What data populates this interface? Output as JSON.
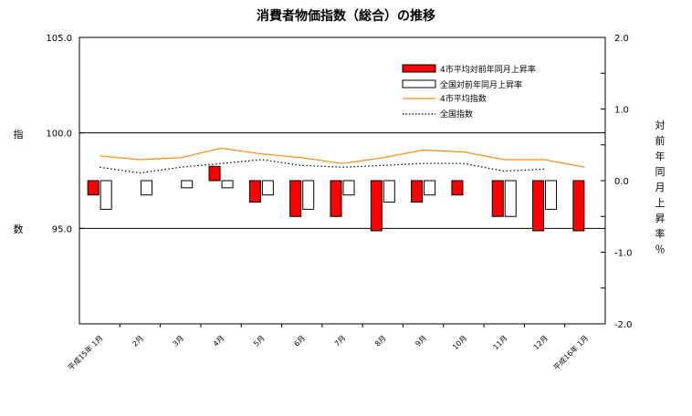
{
  "chart_data": {
    "type": "bar",
    "title": "消費者物価指数（総合）の推移",
    "categories": [
      "平成15年 1月",
      "2月",
      "3月",
      "4月",
      "5月",
      "6月",
      "7月",
      "8月",
      "9月",
      "10月",
      "11月",
      "12月",
      "平成16年 1月"
    ],
    "y_left": {
      "label": "指数",
      "ticks": [
        "105.0",
        "100.0",
        "95.0"
      ],
      "range": [
        90,
        105
      ]
    },
    "y_right": {
      "label": "対前年同月上昇率％",
      "ticks": [
        "2.0",
        "1.0",
        "0.0",
        "-1.0",
        "-2.0"
      ],
      "range": [
        -2,
        2
      ]
    },
    "series": [
      {
        "name": "4市平均対前年同月上昇率",
        "kind": "bar",
        "axis": "right",
        "color": "#ff0000",
        "values": [
          -0.2,
          0.0,
          0.0,
          0.2,
          -0.3,
          -0.5,
          -0.5,
          -0.7,
          -0.3,
          -0.2,
          -0.5,
          -0.7,
          -0.7
        ]
      },
      {
        "name": "全国対前年同月上昇率",
        "kind": "bar",
        "axis": "right",
        "color": "#ffffff",
        "values": [
          -0.4,
          -0.2,
          -0.1,
          -0.1,
          -0.2,
          -0.4,
          -0.2,
          -0.3,
          -0.2,
          0.0,
          -0.5,
          -0.4,
          null
        ]
      },
      {
        "name": "4市平均指数",
        "kind": "line",
        "axis": "left",
        "color": "#ff8c1a",
        "values": [
          98.8,
          98.6,
          98.7,
          99.2,
          98.9,
          98.7,
          98.4,
          98.7,
          99.1,
          99.0,
          98.6,
          98.6,
          98.2
        ]
      },
      {
        "name": "全国指数",
        "kind": "line",
        "axis": "left",
        "color": "#000000",
        "dash": "dotted",
        "values": [
          98.2,
          97.9,
          98.2,
          98.4,
          98.6,
          98.3,
          98.2,
          98.3,
          98.4,
          98.4,
          98.0,
          98.1,
          null
        ]
      }
    ],
    "legend_position": "top-right"
  }
}
